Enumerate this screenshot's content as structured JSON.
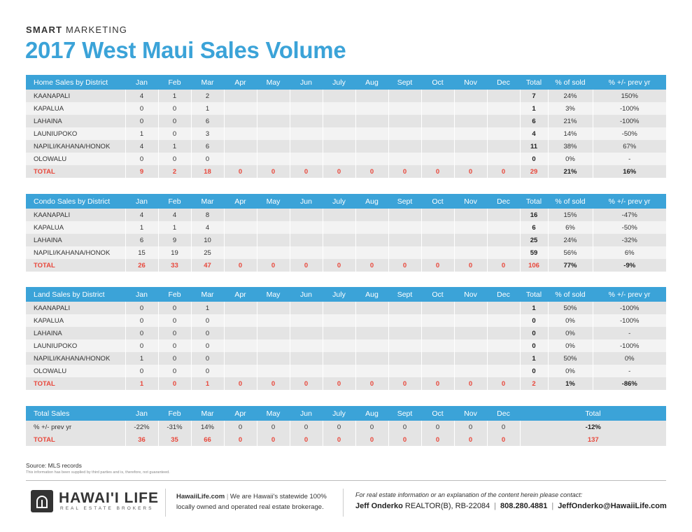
{
  "header": {
    "kicker_bold": "SMART",
    "kicker_rest": " MARKETING",
    "title": "2017 West Maui Sales Volume"
  },
  "month_headers": [
    "Jan",
    "Feb",
    "Mar",
    "Apr",
    "May",
    "Jun",
    "July",
    "Aug",
    "Sept",
    "Oct",
    "Nov",
    "Dec"
  ],
  "col_total": "Total",
  "col_pct": "% of sold",
  "col_change": "% +/- prev yr",
  "tables": [
    {
      "title": "Home Sales by District",
      "rows": [
        {
          "name": "KAANAPALI",
          "months": [
            "4",
            "1",
            "2",
            "",
            "",
            "",
            "",
            "",
            "",
            "",
            "",
            ""
          ],
          "total": "7",
          "pct": "24%",
          "change": "150%"
        },
        {
          "name": "KAPALUA",
          "months": [
            "0",
            "0",
            "1",
            "",
            "",
            "",
            "",
            "",
            "",
            "",
            "",
            ""
          ],
          "total": "1",
          "pct": "3%",
          "change": "-100%"
        },
        {
          "name": "LAHAINA",
          "months": [
            "0",
            "0",
            "6",
            "",
            "",
            "",
            "",
            "",
            "",
            "",
            "",
            ""
          ],
          "total": "6",
          "pct": "21%",
          "change": "-100%"
        },
        {
          "name": "LAUNIUPOKO",
          "months": [
            "1",
            "0",
            "3",
            "",
            "",
            "",
            "",
            "",
            "",
            "",
            "",
            ""
          ],
          "total": "4",
          "pct": "14%",
          "change": "-50%"
        },
        {
          "name": "NAPILI/KAHANA/HONOK",
          "months": [
            "4",
            "1",
            "6",
            "",
            "",
            "",
            "",
            "",
            "",
            "",
            "",
            ""
          ],
          "total": "11",
          "pct": "38%",
          "change": "67%"
        },
        {
          "name": "OLOWALU",
          "months": [
            "0",
            "0",
            "0",
            "",
            "",
            "",
            "",
            "",
            "",
            "",
            "",
            ""
          ],
          "total": "0",
          "pct": "0%",
          "change": "-"
        }
      ],
      "total_row": {
        "name": "TOTAL",
        "months": [
          "9",
          "2",
          "18",
          "0",
          "0",
          "0",
          "0",
          "0",
          "0",
          "0",
          "0",
          "0"
        ],
        "total": "29",
        "pct": "21%",
        "change": "16%"
      }
    },
    {
      "title": "Condo Sales by District",
      "rows": [
        {
          "name": "KAANAPALI",
          "months": [
            "4",
            "4",
            "8",
            "",
            "",
            "",
            "",
            "",
            "",
            "",
            "",
            ""
          ],
          "total": "16",
          "pct": "15%",
          "change": "-47%"
        },
        {
          "name": "KAPALUA",
          "months": [
            "1",
            "1",
            "4",
            "",
            "",
            "",
            "",
            "",
            "",
            "",
            "",
            ""
          ],
          "total": "6",
          "pct": "6%",
          "change": "-50%"
        },
        {
          "name": "LAHAINA",
          "months": [
            "6",
            "9",
            "10",
            "",
            "",
            "",
            "",
            "",
            "",
            "",
            "",
            ""
          ],
          "total": "25",
          "pct": "24%",
          "change": "-32%"
        },
        {
          "name": "NAPILI/KAHANA/HONOK",
          "months": [
            "15",
            "19",
            "25",
            "",
            "",
            "",
            "",
            "",
            "",
            "",
            "",
            ""
          ],
          "total": "59",
          "pct": "56%",
          "change": "6%"
        }
      ],
      "total_row": {
        "name": "TOTAL",
        "months": [
          "26",
          "33",
          "47",
          "0",
          "0",
          "0",
          "0",
          "0",
          "0",
          "0",
          "0",
          "0"
        ],
        "total": "106",
        "pct": "77%",
        "change": "-9%"
      }
    },
    {
      "title": "Land Sales by District",
      "rows": [
        {
          "name": "KAANAPALI",
          "months": [
            "0",
            "0",
            "1",
            "",
            "",
            "",
            "",
            "",
            "",
            "",
            "",
            ""
          ],
          "total": "1",
          "pct": "50%",
          "change": "-100%"
        },
        {
          "name": "KAPALUA",
          "months": [
            "0",
            "0",
            "0",
            "",
            "",
            "",
            "",
            "",
            "",
            "",
            "",
            ""
          ],
          "total": "0",
          "pct": "0%",
          "change": "-100%"
        },
        {
          "name": "LAHAINA",
          "months": [
            "0",
            "0",
            "0",
            "",
            "",
            "",
            "",
            "",
            "",
            "",
            "",
            ""
          ],
          "total": "0",
          "pct": "0%",
          "change": "-"
        },
        {
          "name": "LAUNIUPOKO",
          "months": [
            "0",
            "0",
            "0",
            "",
            "",
            "",
            "",
            "",
            "",
            "",
            "",
            ""
          ],
          "total": "0",
          "pct": "0%",
          "change": "-100%"
        },
        {
          "name": "NAPILI/KAHANA/HONOK",
          "months": [
            "1",
            "0",
            "0",
            "",
            "",
            "",
            "",
            "",
            "",
            "",
            "",
            ""
          ],
          "total": "1",
          "pct": "50%",
          "change": "0%"
        },
        {
          "name": "OLOWALU",
          "months": [
            "0",
            "0",
            "0",
            "",
            "",
            "",
            "",
            "",
            "",
            "",
            "",
            ""
          ],
          "total": "0",
          "pct": "0%",
          "change": "-"
        }
      ],
      "total_row": {
        "name": "TOTAL",
        "months": [
          "1",
          "0",
          "1",
          "0",
          "0",
          "0",
          "0",
          "0",
          "0",
          "0",
          "0",
          "0"
        ],
        "total": "2",
        "pct": "1%",
        "change": "-86%"
      }
    }
  ],
  "total_sales": {
    "title": "Total Sales",
    "total_header": "Total",
    "change_row": {
      "name": "% +/- prev yr",
      "months": [
        "-22%",
        "-31%",
        "14%",
        "0",
        "0",
        "0",
        "0",
        "0",
        "0",
        "0",
        "0",
        "0"
      ],
      "total": "-12%"
    },
    "total_row": {
      "name": "TOTAL",
      "months": [
        "36",
        "35",
        "66",
        "0",
        "0",
        "0",
        "0",
        "0",
        "0",
        "0",
        "0",
        "0"
      ],
      "total": "137"
    }
  },
  "footer": {
    "source": "Source: MLS records",
    "disclaimer": "This information has been supplied by third parties and is, therefore, not guaranteed.",
    "logo_name": "HAWAI'I LIFE",
    "logo_sub": "REAL ESTATE BROKERS",
    "site": "HawaiiLife.com",
    "about_rest": "We are Hawaii's statewide 100%",
    "about_line2": "locally owned and operated real estate brokerage.",
    "contact_note": "For real estate information or an explanation of the content herein please contact:",
    "agent_name": "Jeff Onderko",
    "agent_license": "REALTOR(B), RB-22084",
    "agent_phone": "808.280.4881",
    "agent_email": "JeffOnderko@HawaiiLife.com"
  }
}
